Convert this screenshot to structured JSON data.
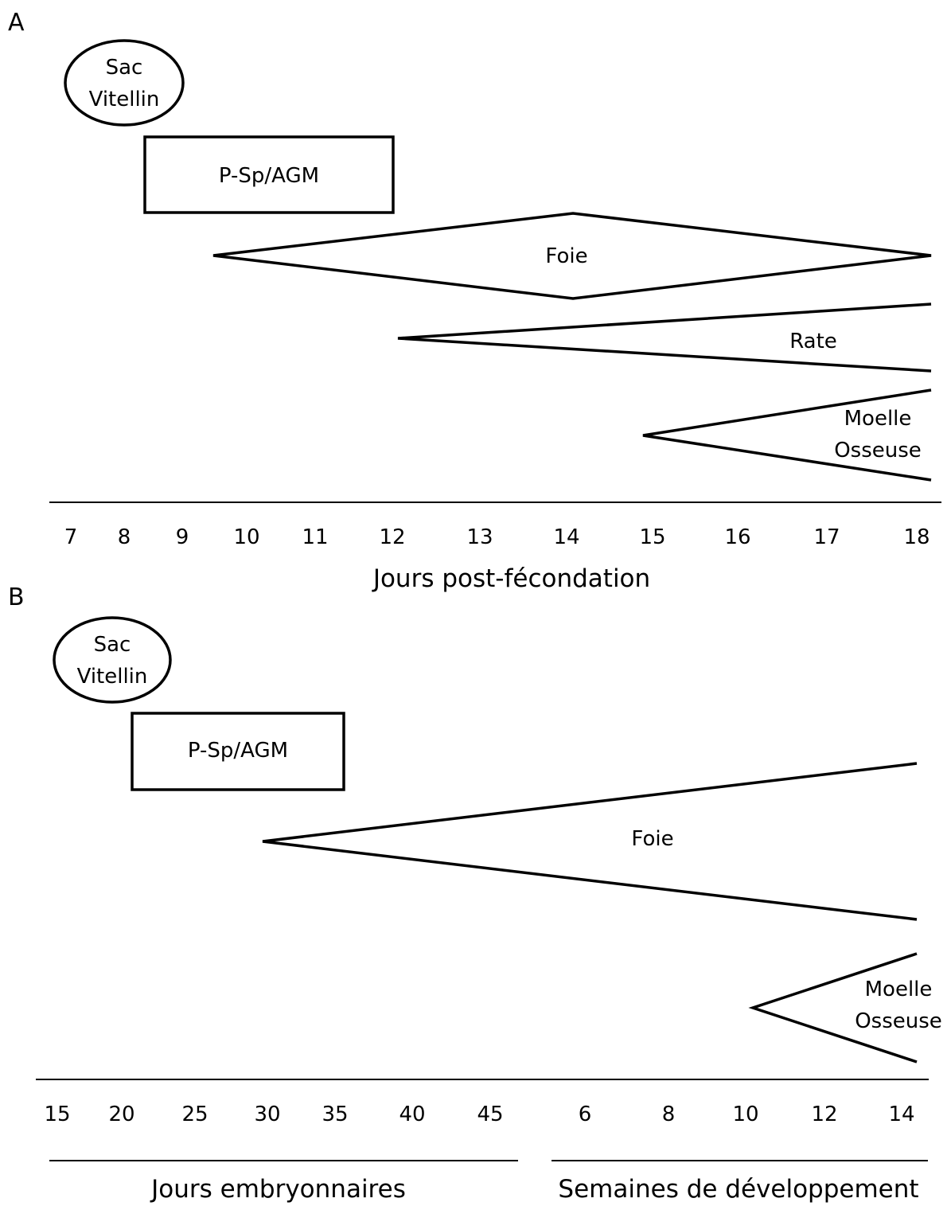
{
  "panel_a": {
    "letter": "A",
    "stages": {
      "yolk_sac": [
        "Sac",
        "Vitellin"
      ],
      "psp_agm": "P-Sp/AGM",
      "liver": "Foie",
      "spleen": "Rate",
      "bone_marrow": [
        "Moelle",
        "Osseuse"
      ]
    },
    "ticks": [
      "7",
      "8",
      "9",
      "10",
      "11",
      "12",
      "13",
      "14",
      "15",
      "16",
      "17",
      "18"
    ],
    "axis_title": "Jours post-fécondation"
  },
  "panel_b": {
    "letter": "B",
    "stages": {
      "yolk_sac": [
        "Sac",
        "Vitellin"
      ],
      "psp_agm": "P-Sp/AGM",
      "liver": "Foie",
      "bone_marrow": [
        "Moelle",
        "Osseuse"
      ]
    },
    "ticks_days": [
      "15",
      "20",
      "25",
      "30",
      "35",
      "40",
      "45"
    ],
    "ticks_weeks": [
      "6",
      "8",
      "10",
      "12",
      "14"
    ],
    "axis_title_days": "Jours embryonnaires",
    "axis_title_weeks": "Semaines de développement"
  }
}
